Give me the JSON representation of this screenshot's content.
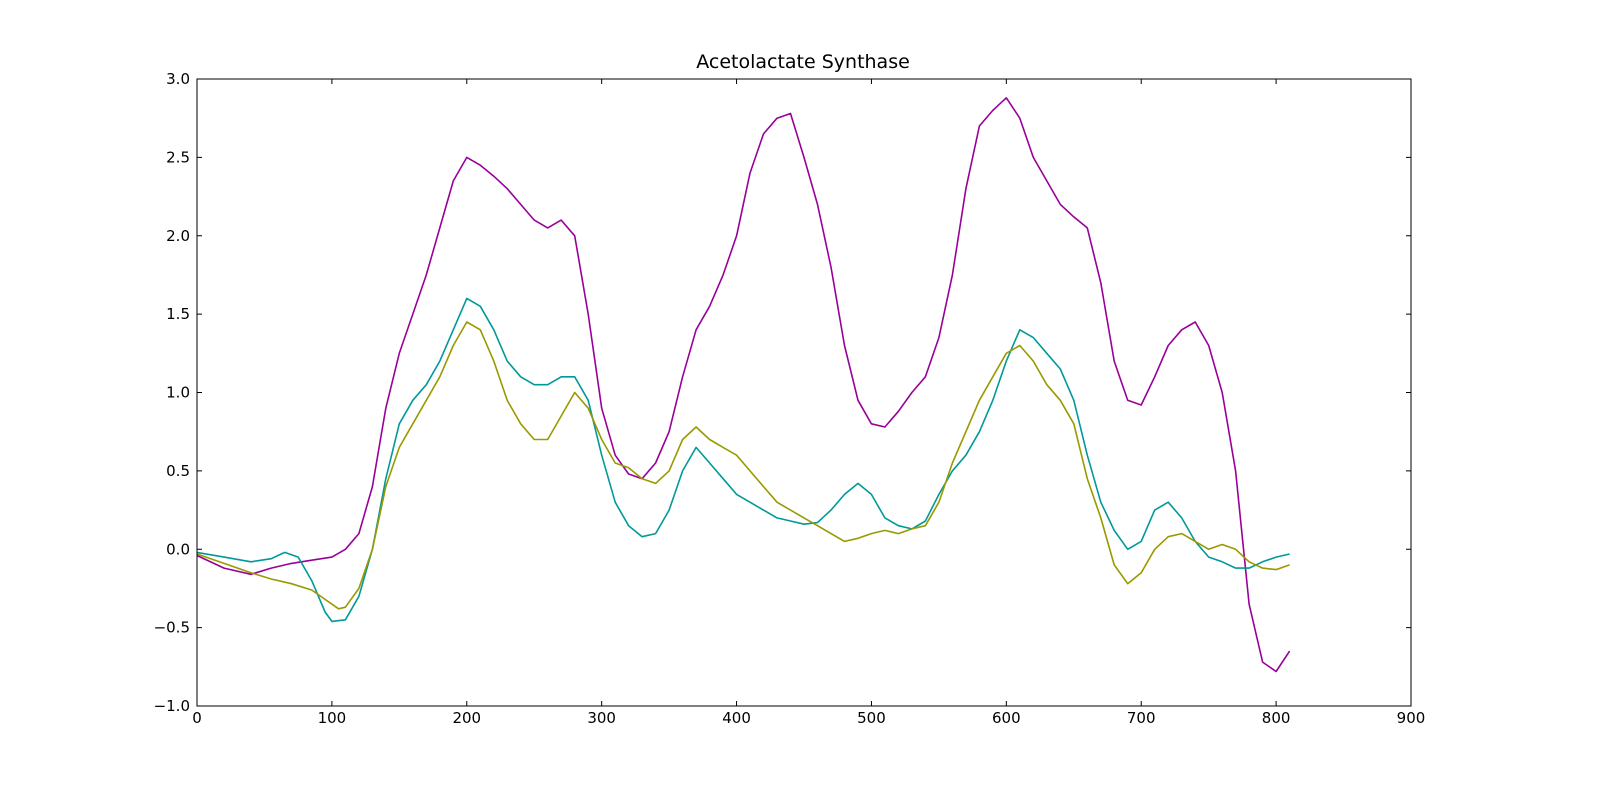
{
  "chart_data": {
    "type": "line",
    "title": "Acetolactate Synthase",
    "xlabel": "",
    "ylabel": "",
    "xlim": [
      0,
      900
    ],
    "ylim": [
      -1.0,
      3.0
    ],
    "x_ticks": [
      0,
      100,
      200,
      300,
      400,
      500,
      600,
      700,
      800,
      900
    ],
    "y_ticks": [
      -1.0,
      -0.5,
      0.0,
      0.5,
      1.0,
      1.5,
      2.0,
      2.5,
      3.0
    ],
    "x_tick_labels": [
      "0",
      "100",
      "200",
      "300",
      "400",
      "500",
      "600",
      "700",
      "800",
      "900"
    ],
    "y_tick_labels": [
      "−1.0",
      "−0.5",
      "0.0",
      "0.5",
      "1.0",
      "1.5",
      "2.0",
      "2.5",
      "3.0"
    ],
    "grid": false,
    "legend": "none",
    "series": [
      {
        "color": "#990099",
        "x": [
          0,
          20,
          40,
          55,
          70,
          85,
          100,
          110,
          120,
          130,
          140,
          150,
          160,
          170,
          180,
          190,
          200,
          210,
          220,
          230,
          240,
          250,
          260,
          270,
          280,
          290,
          300,
          310,
          320,
          330,
          340,
          350,
          360,
          370,
          380,
          390,
          400,
          410,
          420,
          430,
          440,
          450,
          460,
          470,
          480,
          490,
          500,
          510,
          520,
          530,
          540,
          550,
          560,
          570,
          580,
          590,
          600,
          610,
          620,
          630,
          640,
          650,
          660,
          670,
          680,
          690,
          700,
          710,
          720,
          730,
          740,
          750,
          760,
          770,
          780,
          790,
          800,
          810
        ],
        "y": [
          -0.04,
          -0.12,
          -0.16,
          -0.12,
          -0.09,
          -0.07,
          -0.05,
          0.0,
          0.1,
          0.4,
          0.9,
          1.25,
          1.5,
          1.75,
          2.05,
          2.35,
          2.5,
          2.45,
          2.38,
          2.3,
          2.2,
          2.1,
          2.05,
          2.1,
          2.0,
          1.5,
          0.9,
          0.6,
          0.48,
          0.45,
          0.55,
          0.75,
          1.1,
          1.4,
          1.55,
          1.75,
          2.0,
          2.4,
          2.65,
          2.75,
          2.78,
          2.5,
          2.2,
          1.8,
          1.3,
          0.95,
          0.8,
          0.78,
          0.88,
          1.0,
          1.1,
          1.35,
          1.75,
          2.3,
          2.7,
          2.8,
          2.88,
          2.75,
          2.5,
          2.35,
          2.2,
          2.12,
          2.05,
          1.7,
          1.2,
          0.95,
          0.92,
          1.1,
          1.3,
          1.4,
          1.45,
          1.3,
          1.0,
          0.5,
          -0.35,
          -0.72,
          -0.78,
          -0.65
        ]
      },
      {
        "color": "#009999",
        "x": [
          0,
          20,
          40,
          55,
          65,
          75,
          85,
          95,
          100,
          110,
          120,
          130,
          140,
          150,
          160,
          170,
          180,
          190,
          200,
          210,
          220,
          230,
          240,
          250,
          260,
          270,
          280,
          290,
          300,
          310,
          320,
          330,
          340,
          350,
          360,
          370,
          380,
          390,
          400,
          410,
          420,
          430,
          440,
          450,
          460,
          470,
          480,
          490,
          500,
          510,
          520,
          530,
          540,
          550,
          560,
          570,
          580,
          590,
          600,
          610,
          620,
          630,
          640,
          650,
          660,
          670,
          680,
          690,
          700,
          710,
          720,
          730,
          740,
          750,
          760,
          770,
          780,
          790,
          800,
          810
        ],
        "y": [
          -0.02,
          -0.05,
          -0.08,
          -0.06,
          -0.02,
          -0.05,
          -0.2,
          -0.4,
          -0.46,
          -0.45,
          -0.3,
          0.0,
          0.45,
          0.8,
          0.95,
          1.05,
          1.2,
          1.4,
          1.6,
          1.55,
          1.4,
          1.2,
          1.1,
          1.05,
          1.05,
          1.1,
          1.1,
          0.95,
          0.6,
          0.3,
          0.15,
          0.08,
          0.1,
          0.25,
          0.5,
          0.65,
          0.55,
          0.45,
          0.35,
          0.3,
          0.25,
          0.2,
          0.18,
          0.16,
          0.17,
          0.25,
          0.35,
          0.42,
          0.35,
          0.2,
          0.15,
          0.13,
          0.18,
          0.35,
          0.5,
          0.6,
          0.75,
          0.95,
          1.2,
          1.4,
          1.35,
          1.25,
          1.15,
          0.95,
          0.6,
          0.3,
          0.12,
          0.0,
          0.05,
          0.25,
          0.3,
          0.2,
          0.05,
          -0.05,
          -0.08,
          -0.12,
          -0.12,
          -0.08,
          -0.05,
          -0.03
        ]
      },
      {
        "color": "#999900",
        "x": [
          0,
          20,
          40,
          55,
          70,
          85,
          95,
          105,
          110,
          120,
          130,
          140,
          150,
          160,
          170,
          180,
          190,
          200,
          210,
          220,
          230,
          240,
          250,
          260,
          270,
          280,
          290,
          300,
          310,
          320,
          330,
          340,
          350,
          360,
          370,
          380,
          390,
          400,
          410,
          420,
          430,
          440,
          450,
          460,
          470,
          480,
          490,
          500,
          510,
          520,
          530,
          540,
          550,
          560,
          570,
          580,
          590,
          600,
          610,
          620,
          630,
          640,
          650,
          660,
          670,
          680,
          690,
          700,
          710,
          720,
          730,
          740,
          750,
          760,
          770,
          780,
          790,
          800,
          810
        ],
        "y": [
          -0.03,
          -0.09,
          -0.15,
          -0.19,
          -0.22,
          -0.26,
          -0.32,
          -0.38,
          -0.37,
          -0.25,
          0.0,
          0.4,
          0.65,
          0.8,
          0.95,
          1.1,
          1.3,
          1.45,
          1.4,
          1.2,
          0.95,
          0.8,
          0.7,
          0.7,
          0.85,
          1.0,
          0.9,
          0.7,
          0.55,
          0.52,
          0.45,
          0.42,
          0.5,
          0.7,
          0.78,
          0.7,
          0.65,
          0.6,
          0.5,
          0.4,
          0.3,
          0.25,
          0.2,
          0.15,
          0.1,
          0.05,
          0.07,
          0.1,
          0.12,
          0.1,
          0.13,
          0.15,
          0.3,
          0.55,
          0.75,
          0.95,
          1.1,
          1.25,
          1.3,
          1.2,
          1.05,
          0.95,
          0.8,
          0.45,
          0.2,
          -0.1,
          -0.22,
          -0.15,
          0.0,
          0.08,
          0.1,
          0.05,
          0.0,
          0.03,
          0.0,
          -0.08,
          -0.12,
          -0.13,
          -0.1
        ]
      }
    ]
  }
}
